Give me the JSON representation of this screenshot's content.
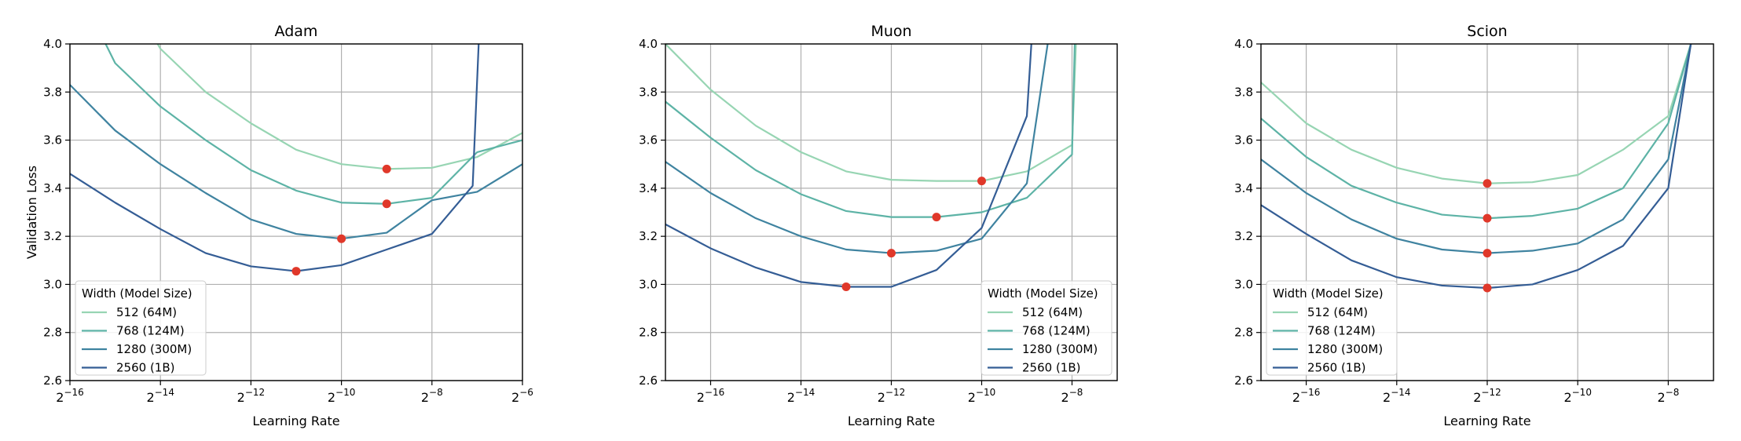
{
  "legend_title": "Width (Model Size)",
  "chart_data": [
    {
      "type": "line",
      "title": "Adam",
      "xlabel": "Learning Rate",
      "ylabel": "Validation Loss",
      "x_scale": "log2",
      "x_exponent_range": [
        -16,
        -6
      ],
      "x_tick_exponents": [
        -16,
        -14,
        -12,
        -10,
        -8,
        -6
      ],
      "ylim": [
        2.6,
        4.0
      ],
      "y_ticks": [
        "2.6",
        "2.8",
        "3.0",
        "3.2",
        "3.4",
        "3.6",
        "3.8",
        "4.0"
      ],
      "grid": true,
      "legend_position": "lower-left",
      "series": [
        {
          "name": "512 (64M)",
          "color": "#97d5b3",
          "x_exponents": [
            -15,
            -14,
            -13,
            -12,
            -11,
            -10,
            -9,
            -8,
            -7,
            -6
          ],
          "values": [
            4.3,
            3.98,
            3.8,
            3.67,
            3.56,
            3.5,
            3.48,
            3.485,
            3.53,
            3.63
          ]
        },
        {
          "name": "768 (124M)",
          "color": "#5db3a6",
          "x_exponents": [
            -16,
            -15,
            -14,
            -13,
            -12,
            -11,
            -10,
            -9,
            -8,
            -7,
            -6
          ],
          "values": [
            4.3,
            3.92,
            3.74,
            3.6,
            3.475,
            3.39,
            3.34,
            3.335,
            3.36,
            3.55,
            3.6
          ]
        },
        {
          "name": "1280 (300M)",
          "color": "#3f83a0",
          "x_exponents": [
            -16,
            -15,
            -14,
            -13,
            -12,
            -11,
            -10,
            -9,
            -8,
            -7,
            -6
          ],
          "values": [
            3.83,
            3.64,
            3.5,
            3.38,
            3.27,
            3.21,
            3.19,
            3.215,
            3.35,
            3.385,
            3.5
          ]
        },
        {
          "name": "2560 (1B)",
          "color": "#345d95",
          "x_exponents": [
            -16,
            -15,
            -14,
            -13,
            -12,
            -11,
            -10,
            -9,
            -8,
            -7.1,
            -6.9
          ],
          "values": [
            3.46,
            3.34,
            3.23,
            3.13,
            3.075,
            3.055,
            3.08,
            3.145,
            3.21,
            3.41,
            4.3
          ]
        }
      ],
      "optimum_points": [
        {
          "x_exponent": -9,
          "value": 3.48
        },
        {
          "x_exponent": -9,
          "value": 3.335
        },
        {
          "x_exponent": -10,
          "value": 3.19
        },
        {
          "x_exponent": -11,
          "value": 3.055
        }
      ]
    },
    {
      "type": "line",
      "title": "Muon",
      "xlabel": "Learning Rate",
      "ylabel": "",
      "x_scale": "log2",
      "x_exponent_range": [
        -17,
        -7
      ],
      "x_tick_exponents": [
        -16,
        -14,
        -12,
        -10,
        -8
      ],
      "ylim": [
        2.6,
        4.0
      ],
      "y_ticks": [
        "2.6",
        "2.8",
        "3.0",
        "3.2",
        "3.4",
        "3.6",
        "3.8",
        "4.0"
      ],
      "grid": true,
      "legend_position": "lower-right",
      "series": [
        {
          "name": "512 (64M)",
          "color": "#97d5b3",
          "x_exponents": [
            -17,
            -16,
            -15,
            -14,
            -13,
            -12,
            -11,
            -10,
            -9,
            -8,
            -7.85
          ],
          "values": [
            4.0,
            3.81,
            3.66,
            3.55,
            3.47,
            3.435,
            3.43,
            3.43,
            3.47,
            3.58,
            4.3
          ]
        },
        {
          "name": "768 (124M)",
          "color": "#5db3a6",
          "x_exponents": [
            -17,
            -16,
            -15,
            -14,
            -13,
            -12,
            -11,
            -10,
            -9,
            -8,
            -7.9
          ],
          "values": [
            3.76,
            3.61,
            3.475,
            3.375,
            3.305,
            3.28,
            3.28,
            3.3,
            3.36,
            3.54,
            4.3
          ]
        },
        {
          "name": "1280 (300M)",
          "color": "#3f83a0",
          "x_exponents": [
            -17,
            -16,
            -15,
            -14,
            -13,
            -12,
            -11,
            -10,
            -9,
            -8.3
          ],
          "values": [
            3.51,
            3.38,
            3.275,
            3.2,
            3.145,
            3.13,
            3.14,
            3.19,
            3.42,
            4.3
          ]
        },
        {
          "name": "2560 (1B)",
          "color": "#345d95",
          "x_exponents": [
            -17,
            -16,
            -15,
            -14,
            -13,
            -12,
            -11,
            -10,
            -9,
            -8.8
          ],
          "values": [
            3.25,
            3.15,
            3.07,
            3.01,
            2.99,
            2.99,
            3.06,
            3.235,
            3.7,
            4.3
          ]
        }
      ],
      "optimum_points": [
        {
          "x_exponent": -10,
          "value": 3.43
        },
        {
          "x_exponent": -11,
          "value": 3.28
        },
        {
          "x_exponent": -12,
          "value": 3.13
        },
        {
          "x_exponent": -13,
          "value": 2.99
        }
      ]
    },
    {
      "type": "line",
      "title": "Scion",
      "xlabel": "Learning Rate",
      "ylabel": "",
      "x_scale": "log2",
      "x_exponent_range": [
        -17,
        -7
      ],
      "x_tick_exponents": [
        -16,
        -14,
        -12,
        -10,
        -8
      ],
      "ylim": [
        2.6,
        4.0
      ],
      "y_ticks": [
        "2.6",
        "2.8",
        "3.0",
        "3.2",
        "3.4",
        "3.6",
        "3.8",
        "4.0"
      ],
      "grid": true,
      "legend_position": "lower-left",
      "series": [
        {
          "name": "512 (64M)",
          "color": "#97d5b3",
          "x_exponents": [
            -17,
            -16,
            -15,
            -14,
            -13,
            -12,
            -11,
            -10,
            -9,
            -8,
            -7.5,
            -7.3
          ],
          "values": [
            3.84,
            3.67,
            3.56,
            3.485,
            3.44,
            3.42,
            3.425,
            3.455,
            3.56,
            3.7,
            4.0,
            4.3
          ]
        },
        {
          "name": "768 (124M)",
          "color": "#5db3a6",
          "x_exponents": [
            -17,
            -16,
            -15,
            -14,
            -13,
            -12,
            -11,
            -10,
            -9,
            -8,
            -7.5,
            -7.3
          ],
          "values": [
            3.69,
            3.53,
            3.41,
            3.34,
            3.29,
            3.275,
            3.285,
            3.315,
            3.4,
            3.67,
            4.0,
            4.3
          ]
        },
        {
          "name": "1280 (300M)",
          "color": "#3f83a0",
          "x_exponents": [
            -17,
            -16,
            -15,
            -14,
            -13,
            -12,
            -11,
            -10,
            -9,
            -8,
            -7.5,
            -7.3
          ],
          "values": [
            3.52,
            3.38,
            3.27,
            3.19,
            3.145,
            3.13,
            3.14,
            3.17,
            3.27,
            3.52,
            4.0,
            4.3
          ]
        },
        {
          "name": "2560 (1B)",
          "color": "#345d95",
          "x_exponents": [
            -17,
            -16,
            -15,
            -14,
            -13,
            -12,
            -11,
            -10,
            -9,
            -8,
            -7.5,
            -7.3
          ],
          "values": [
            3.33,
            3.21,
            3.1,
            3.03,
            2.995,
            2.985,
            3.0,
            3.06,
            3.16,
            3.4,
            4.0,
            4.3
          ]
        }
      ],
      "optimum_points": [
        {
          "x_exponent": -12,
          "value": 3.42
        },
        {
          "x_exponent": -12,
          "value": 3.275
        },
        {
          "x_exponent": -12,
          "value": 3.13
        },
        {
          "x_exponent": -12,
          "value": 2.985
        }
      ]
    }
  ]
}
